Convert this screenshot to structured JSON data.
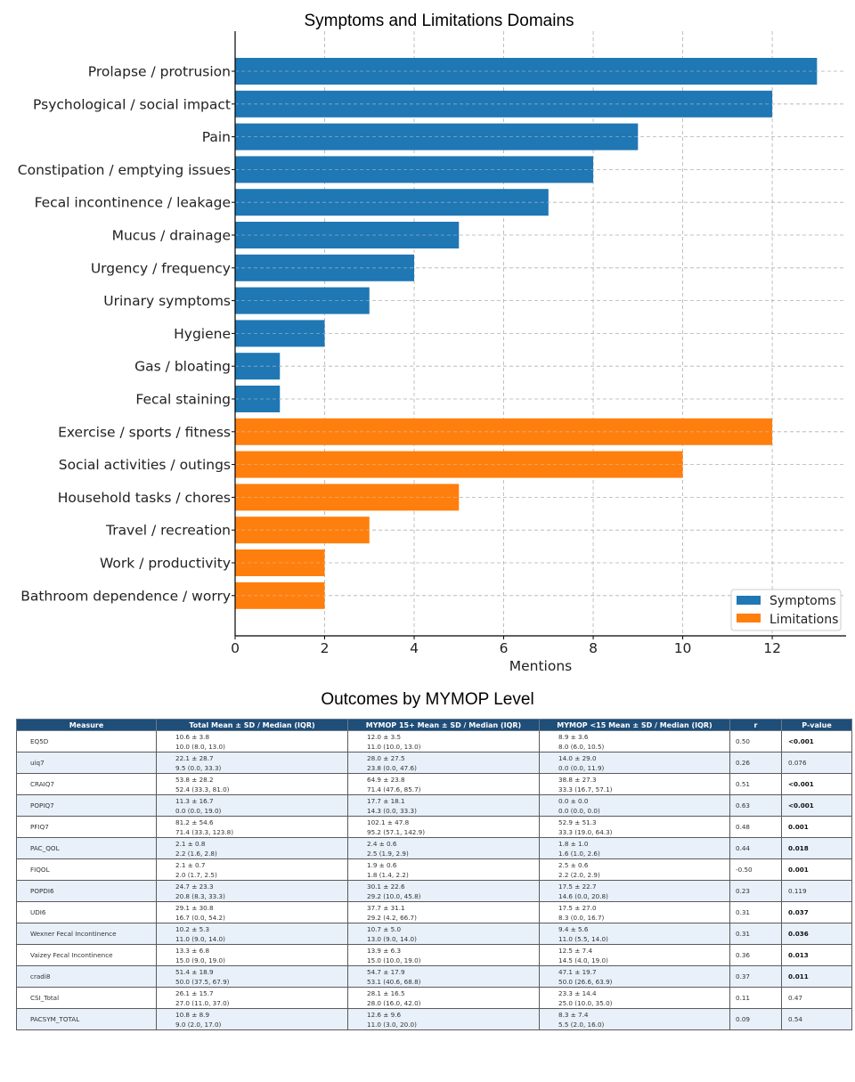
{
  "chart_data": {
    "type": "bar",
    "orientation": "horizontal",
    "title": "Symptoms and Limitations Domains",
    "xlabel": "Mentions",
    "ylabel": "",
    "xlim": [
      0,
      13.65
    ],
    "xticks": [
      0,
      2,
      4,
      6,
      8,
      10,
      12
    ],
    "grid": true,
    "legend_position": "bottom-right",
    "categories": [
      "Prolapse / protrusion",
      "Psychological / social impact",
      "Pain",
      "Constipation / emptying issues",
      "Fecal incontinence / leakage",
      "Mucus / drainage",
      "Urgency / frequency",
      "Urinary symptoms",
      "Hygiene",
      "Gas / bloating",
      "Fecal staining",
      "Exercise / sports / fitness",
      "Social activities / outings",
      "Household tasks / chores",
      "Travel / recreation",
      "Work / productivity",
      "Bathroom dependence / worry"
    ],
    "values": [
      13,
      12,
      9,
      8,
      7,
      5,
      4,
      3,
      2,
      1,
      1,
      12,
      10,
      5,
      3,
      2,
      2
    ],
    "groups": [
      "Symptoms",
      "Symptoms",
      "Symptoms",
      "Symptoms",
      "Symptoms",
      "Symptoms",
      "Symptoms",
      "Symptoms",
      "Symptoms",
      "Symptoms",
      "Symptoms",
      "Limitations",
      "Limitations",
      "Limitations",
      "Limitations",
      "Limitations",
      "Limitations"
    ],
    "series": [
      {
        "name": "Symptoms",
        "color": "#1f77b4"
      },
      {
        "name": "Limitations",
        "color": "#ff7f0e"
      }
    ]
  },
  "table": {
    "title": "Outcomes by MYMOP Level",
    "columns": [
      "Measure",
      "Total Mean ± SD / Median (IQR)",
      "MYMOP 15+ Mean ± SD / Median (IQR)",
      "MYMOP <15 Mean ± SD / Median (IQR)",
      "r",
      "P-value"
    ],
    "header_color": "#1f4e79",
    "alt_row_color": "#e8f0f9",
    "rows": [
      {
        "measure": "EQ5D",
        "total": [
          "10.6 ± 3.8",
          "10.0 (8.0, 13.0)"
        ],
        "high": [
          "12.0 ± 3.5",
          "11.0 (10.0, 13.0)"
        ],
        "low": [
          "8.9 ± 3.6",
          "8.0 (6.0, 10.5)"
        ],
        "r": "0.50",
        "p": "<0.001",
        "significant": true
      },
      {
        "measure": "uiq7",
        "total": [
          "22.1 ± 28.7",
          "9.5 (0.0, 33.3)"
        ],
        "high": [
          "28.0 ± 27.5",
          "23.8 (0.0, 47.6)"
        ],
        "low": [
          "14.0 ± 29.0",
          "0.0 (0.0, 11.9)"
        ],
        "r": "0.26",
        "p": "0.076",
        "significant": false
      },
      {
        "measure": "CRAIQ7",
        "total": [
          "53.8 ± 28.2",
          "52.4 (33.3, 81.0)"
        ],
        "high": [
          "64.9 ± 23.8",
          "71.4 (47.6, 85.7)"
        ],
        "low": [
          "38.8 ± 27.3",
          "33.3 (16.7, 57.1)"
        ],
        "r": "0.51",
        "p": "<0.001",
        "significant": true
      },
      {
        "measure": "POPIQ7",
        "total": [
          "11.3 ± 16.7",
          "0.0 (0.0, 19.0)"
        ],
        "high": [
          "17.7 ± 18.1",
          "14.3 (0.0, 33.3)"
        ],
        "low": [
          "0.0 ± 0.0",
          "0.0 (0.0, 0.0)"
        ],
        "r": "0.63",
        "p": "<0.001",
        "significant": true
      },
      {
        "measure": "PFIQ7",
        "total": [
          "81.2 ± 54.6",
          "71.4 (33.3, 123.8)"
        ],
        "high": [
          "102.1 ± 47.8",
          "95.2 (57.1, 142.9)"
        ],
        "low": [
          "52.9 ± 51.3",
          "33.3 (19.0, 64.3)"
        ],
        "r": "0.48",
        "p": "0.001",
        "significant": true
      },
      {
        "measure": "PAC_QOL",
        "total": [
          "2.1 ± 0.8",
          "2.2 (1.6, 2.8)"
        ],
        "high": [
          "2.4 ± 0.6",
          "2.5 (1.9, 2.9)"
        ],
        "low": [
          "1.8 ± 1.0",
          "1.6 (1.0, 2.6)"
        ],
        "r": "0.44",
        "p": "0.018",
        "significant": true
      },
      {
        "measure": "FIQOL",
        "total": [
          "2.1 ± 0.7",
          "2.0 (1.7, 2.5)"
        ],
        "high": [
          "1.9 ± 0.6",
          "1.8 (1.4, 2.2)"
        ],
        "low": [
          "2.5 ± 0.6",
          "2.2 (2.0, 2.9)"
        ],
        "r": "-0.50",
        "p": "0.001",
        "significant": true
      },
      {
        "measure": "POPDI6",
        "total": [
          "24.7 ± 23.3",
          "20.8 (8.3, 33.3)"
        ],
        "high": [
          "30.1 ± 22.6",
          "29.2 (10.0, 45.8)"
        ],
        "low": [
          "17.5 ± 22.7",
          "14.6 (0.0, 20.8)"
        ],
        "r": "0.23",
        "p": "0.119",
        "significant": false
      },
      {
        "measure": "UDI6",
        "total": [
          "29.1 ± 30.8",
          "16.7 (0.0, 54.2)"
        ],
        "high": [
          "37.7 ± 31.1",
          "29.2 (4.2, 66.7)"
        ],
        "low": [
          "17.5 ± 27.0",
          "8.3 (0.0, 16.7)"
        ],
        "r": "0.31",
        "p": "0.037",
        "significant": true
      },
      {
        "measure": "Wexner Fecal Incontinence",
        "total": [
          "10.2 ± 5.3",
          "11.0 (9.0, 14.0)"
        ],
        "high": [
          "10.7 ± 5.0",
          "13.0 (9.0, 14.0)"
        ],
        "low": [
          "9.4 ± 5.6",
          "11.0 (5.5, 14.0)"
        ],
        "r": "0.31",
        "p": "0.036",
        "significant": true
      },
      {
        "measure": "Vaizey Fecal Incontinence",
        "total": [
          "13.3 ± 6.8",
          "15.0 (9.0, 19.0)"
        ],
        "high": [
          "13.9 ± 6.3",
          "15.0 (10.0, 19.0)"
        ],
        "low": [
          "12.5 ± 7.4",
          "14.5 (4.0, 19.0)"
        ],
        "r": "0.36",
        "p": "0.013",
        "significant": true
      },
      {
        "measure": "cradi8",
        "total": [
          "51.4 ± 18.9",
          "50.0 (37.5, 67.9)"
        ],
        "high": [
          "54.7 ± 17.9",
          "53.1 (40.6, 68.8)"
        ],
        "low": [
          "47.1 ± 19.7",
          "50.0 (26.6, 63.9)"
        ],
        "r": "0.37",
        "p": "0.011",
        "significant": true
      },
      {
        "measure": "CSI_Total",
        "total": [
          "26.1 ± 15.7",
          "27.0 (11.0, 37.0)"
        ],
        "high": [
          "28.1 ± 16.5",
          "28.0 (16.0, 42.0)"
        ],
        "low": [
          "23.3 ± 14.4",
          "25.0 (10.0, 35.0)"
        ],
        "r": "0.11",
        "p": "0.47",
        "significant": false
      },
      {
        "measure": "PACSYM_TOTAL",
        "total": [
          "10.8 ± 8.9",
          "9.0 (2.0, 17.0)"
        ],
        "high": [
          "12.6 ± 9.6",
          "11.0 (3.0, 20.0)"
        ],
        "low": [
          "8.3 ± 7.4",
          "5.5 (2.0, 16.0)"
        ],
        "r": "0.09",
        "p": "0.54",
        "significant": false
      }
    ]
  }
}
